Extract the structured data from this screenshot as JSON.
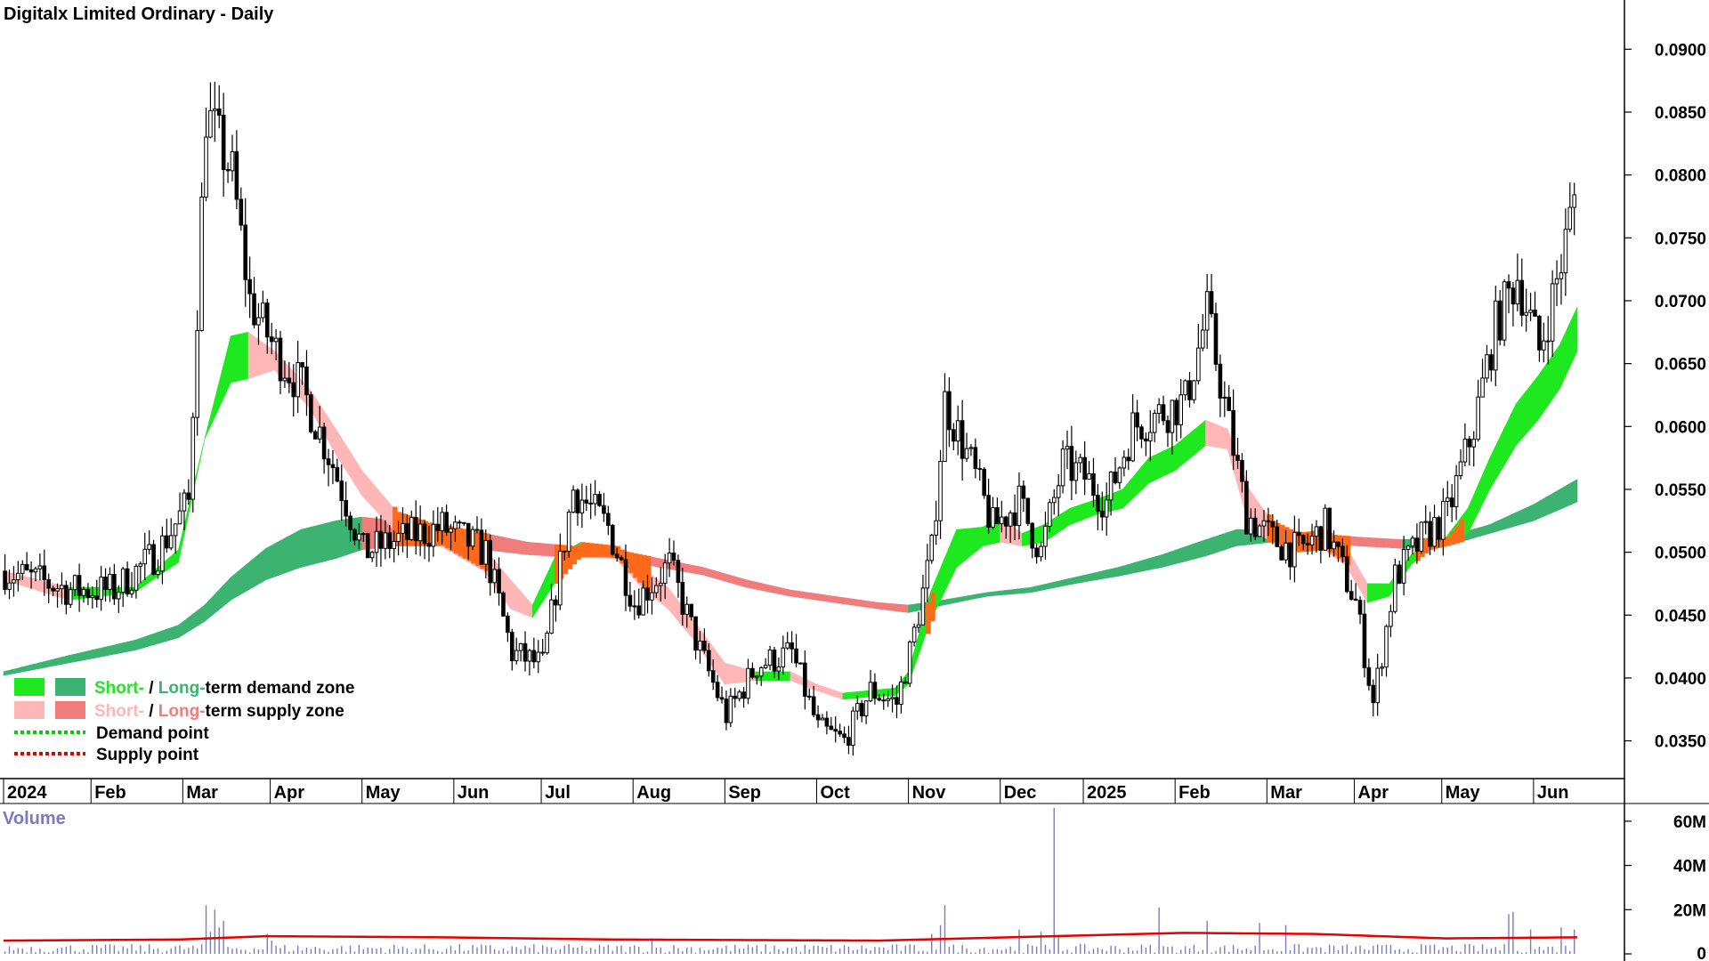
{
  "title": "Digitalx Limited Ordinary - Daily",
  "colors": {
    "short_demand": "#1ee81e",
    "long_demand": "#3cb371",
    "short_supply": "#ffb6b6",
    "long_supply": "#f07c7c",
    "overlap_orange": "#ff6a1a",
    "candle": "#000000",
    "volume_bar": "#7b7bbd",
    "volume_ma": "#e60000",
    "demand_point": "#00d000",
    "supply_point": "#e00000"
  },
  "legend": {
    "row1": {
      "short": "Short-",
      "sep": " / ",
      "long": "Long-",
      "rest": "term demand zone"
    },
    "row2": {
      "short": "Short-",
      "sep": " / ",
      "long": "Long-",
      "rest": "term supply zone"
    },
    "row3": "Demand point",
    "row4": "Supply point"
  },
  "chart_data": [
    {
      "type": "candlestick",
      "title": "Digitalx Limited Ordinary - Daily",
      "y_ticks": [
        "0.0900",
        "0.0850",
        "0.0800",
        "0.0750",
        "0.0700",
        "0.0650",
        "0.0600",
        "0.0550",
        "0.0500",
        "0.0450",
        "0.0400",
        "0.0350"
      ],
      "y_tick_values": [
        0.09,
        0.085,
        0.08,
        0.075,
        0.07,
        0.065,
        0.06,
        0.055,
        0.05,
        0.045,
        0.04,
        0.035
      ],
      "ylim": [
        0.032,
        0.0925
      ],
      "x_labels": [
        "2024",
        "Feb",
        "Mar",
        "Apr",
        "May",
        "Jun",
        "Jul",
        "Aug",
        "Sep",
        "Oct",
        "Nov",
        "Dec",
        "2025",
        "Feb",
        "Mar",
        "Apr",
        "May",
        "Jun"
      ],
      "x_label_index": [
        0,
        20,
        41,
        61,
        82,
        103,
        123,
        144,
        165,
        186,
        207,
        228,
        247,
        268,
        289,
        309,
        329,
        350
      ],
      "n_days": 360,
      "price_anchors": [
        [
          0,
          0.0485
        ],
        [
          15,
          0.047
        ],
        [
          25,
          0.047
        ],
        [
          35,
          0.05
        ],
        [
          42,
          0.054
        ],
        [
          46,
          0.085
        ],
        [
          52,
          0.08
        ],
        [
          56,
          0.07
        ],
        [
          62,
          0.066
        ],
        [
          68,
          0.063
        ],
        [
          75,
          0.057
        ],
        [
          82,
          0.05
        ],
        [
          90,
          0.051
        ],
        [
          100,
          0.052
        ],
        [
          110,
          0.05
        ],
        [
          116,
          0.042
        ],
        [
          123,
          0.041
        ],
        [
          130,
          0.055
        ],
        [
          138,
          0.052
        ],
        [
          144,
          0.046
        ],
        [
          152,
          0.049
        ],
        [
          158,
          0.043
        ],
        [
          165,
          0.037
        ],
        [
          172,
          0.041
        ],
        [
          180,
          0.042
        ],
        [
          186,
          0.036
        ],
        [
          192,
          0.035
        ],
        [
          198,
          0.039
        ],
        [
          204,
          0.038
        ],
        [
          207,
          0.042
        ],
        [
          212,
          0.05
        ],
        [
          215,
          0.062
        ],
        [
          221,
          0.057
        ],
        [
          226,
          0.052
        ],
        [
          232,
          0.054
        ],
        [
          237,
          0.05
        ],
        [
          242,
          0.057
        ],
        [
          247,
          0.056
        ],
        [
          252,
          0.054
        ],
        [
          258,
          0.06
        ],
        [
          264,
          0.061
        ],
        [
          270,
          0.062
        ],
        [
          275,
          0.069
        ],
        [
          280,
          0.06
        ],
        [
          284,
          0.053
        ],
        [
          290,
          0.051
        ],
        [
          296,
          0.05
        ],
        [
          302,
          0.052
        ],
        [
          309,
          0.046
        ],
        [
          313,
          0.038
        ],
        [
          318,
          0.048
        ],
        [
          324,
          0.051
        ],
        [
          330,
          0.053
        ],
        [
          336,
          0.06
        ],
        [
          341,
          0.068
        ],
        [
          346,
          0.072
        ],
        [
          351,
          0.066
        ],
        [
          356,
          0.073
        ],
        [
          360,
          0.08
        ]
      ],
      "short_band": [
        [
          0,
          0.0485,
          0.0478
        ],
        [
          15,
          0.0472,
          0.0462
        ],
        [
          30,
          0.0472,
          0.0468
        ],
        [
          40,
          0.0502,
          0.0492
        ],
        [
          46,
          0.059
        ],
        [
          52,
          0.0672,
          0.0635
        ],
        [
          56,
          0.0675,
          0.0638
        ],
        [
          62,
          0.066,
          0.0645
        ],
        [
          70,
          0.063,
          0.0615
        ],
        [
          76,
          0.0598,
          0.0578
        ],
        [
          82,
          0.0565,
          0.0545
        ],
        [
          90,
          0.0532,
          0.0515
        ],
        [
          100,
          0.052,
          0.0505
        ],
        [
          110,
          0.0503,
          0.0485
        ],
        [
          116,
          0.0478,
          0.0455
        ],
        [
          121,
          0.0458,
          0.0448
        ],
        [
          126,
          0.0495,
          0.0475
        ],
        [
          132,
          0.0508,
          0.0498
        ],
        [
          140,
          0.0505,
          0.0495
        ],
        [
          146,
          0.0488,
          0.0472
        ],
        [
          152,
          0.0472,
          0.0455
        ],
        [
          158,
          0.0445,
          0.043
        ],
        [
          165,
          0.0412,
          0.0395
        ],
        [
          172,
          0.0405,
          0.0398
        ],
        [
          180,
          0.0405,
          0.0398
        ],
        [
          186,
          0.0395,
          0.039
        ],
        [
          192,
          0.0388,
          0.0383
        ],
        [
          198,
          0.039,
          0.0385
        ],
        [
          204,
          0.0392,
          0.0386
        ],
        [
          207,
          0.0405,
          0.0395
        ],
        [
          212,
          0.0468,
          0.0445
        ],
        [
          218,
          0.0518,
          0.0488
        ],
        [
          224,
          0.052,
          0.0505
        ],
        [
          228,
          0.0528,
          0.0508
        ],
        [
          233,
          0.0515,
          0.0505
        ],
        [
          238,
          0.0522,
          0.0508
        ],
        [
          244,
          0.0535,
          0.0522
        ],
        [
          250,
          0.0542,
          0.053
        ],
        [
          256,
          0.055,
          0.0535
        ],
        [
          262,
          0.0575,
          0.0555
        ],
        [
          268,
          0.0585,
          0.0565
        ],
        [
          275,
          0.0605,
          0.0585
        ],
        [
          280,
          0.0598,
          0.0582
        ],
        [
          285,
          0.055,
          0.052
        ],
        [
          290,
          0.0525,
          0.0508
        ],
        [
          296,
          0.0515,
          0.05
        ],
        [
          302,
          0.0518,
          0.0502
        ],
        [
          307,
          0.0505,
          0.049
        ],
        [
          312,
          0.0475,
          0.046
        ],
        [
          317,
          0.0475,
          0.0465
        ],
        [
          322,
          0.0498,
          0.049
        ],
        [
          326,
          0.0508,
          0.0502
        ],
        [
          330,
          0.0512,
          0.0505
        ],
        [
          335,
          0.0535,
          0.0515
        ],
        [
          340,
          0.0575,
          0.055
        ],
        [
          346,
          0.0618,
          0.0585
        ],
        [
          351,
          0.064,
          0.0605
        ],
        [
          356,
          0.0665,
          0.063
        ],
        [
          360,
          0.0695,
          0.066
        ]
      ],
      "long_band": [
        [
          0,
          0.0405,
          0.0402
        ],
        [
          15,
          0.0418,
          0.0412
        ],
        [
          30,
          0.043,
          0.0422
        ],
        [
          40,
          0.0442,
          0.0432
        ],
        [
          46,
          0.0458,
          0.0445
        ],
        [
          52,
          0.048,
          0.0462
        ],
        [
          60,
          0.0503,
          0.0478
        ],
        [
          68,
          0.0518,
          0.0488
        ],
        [
          76,
          0.0525,
          0.0495
        ],
        [
          82,
          0.0528,
          0.0502
        ],
        [
          90,
          0.0525,
          0.0505
        ],
        [
          100,
          0.0522,
          0.0505
        ],
        [
          110,
          0.0515,
          0.0502
        ],
        [
          120,
          0.0508,
          0.0498
        ],
        [
          130,
          0.0505,
          0.0496
        ],
        [
          140,
          0.0502,
          0.0496
        ],
        [
          150,
          0.0495,
          0.0488
        ],
        [
          160,
          0.0488,
          0.0482
        ],
        [
          170,
          0.0478,
          0.0472
        ],
        [
          180,
          0.047,
          0.0465
        ],
        [
          190,
          0.0465,
          0.046
        ],
        [
          200,
          0.046,
          0.0455
        ],
        [
          207,
          0.0458,
          0.0452
        ],
        [
          215,
          0.0462,
          0.0458
        ],
        [
          225,
          0.0468,
          0.0465
        ],
        [
          235,
          0.0472,
          0.0468
        ],
        [
          245,
          0.048,
          0.0475
        ],
        [
          255,
          0.0488,
          0.0481
        ],
        [
          265,
          0.0498,
          0.0488
        ],
        [
          275,
          0.051,
          0.0497
        ],
        [
          282,
          0.0518,
          0.0505
        ],
        [
          290,
          0.0518,
          0.0508
        ],
        [
          300,
          0.0515,
          0.0508
        ],
        [
          310,
          0.0512,
          0.0505
        ],
        [
          320,
          0.051,
          0.0503
        ],
        [
          330,
          0.0512,
          0.0505
        ],
        [
          340,
          0.0522,
          0.0515
        ],
        [
          350,
          0.0538,
          0.0525
        ],
        [
          360,
          0.0558,
          0.054
        ]
      ]
    },
    {
      "type": "bar",
      "title": "Volume",
      "y_ticks": [
        "60M",
        "40M",
        "20M",
        "0"
      ],
      "y_tick_values": [
        60,
        40,
        20,
        0
      ],
      "ylim": [
        0,
        68
      ],
      "unit": "M",
      "spikes": [
        [
          12,
          2.5
        ],
        [
          46,
          22
        ],
        [
          47,
          10
        ],
        [
          48,
          20
        ],
        [
          49,
          12
        ],
        [
          50,
          15
        ],
        [
          60,
          9
        ],
        [
          61,
          6
        ],
        [
          148,
          7
        ],
        [
          212,
          9
        ],
        [
          214,
          13
        ],
        [
          215,
          22
        ],
        [
          232,
          11
        ],
        [
          237,
          10
        ],
        [
          240,
          66
        ],
        [
          241,
          8
        ],
        [
          264,
          21
        ],
        [
          275,
          15
        ],
        [
          287,
          14
        ],
        [
          293,
          13
        ],
        [
          344,
          18
        ],
        [
          345,
          19
        ],
        [
          349,
          11
        ],
        [
          356,
          12
        ],
        [
          359,
          11
        ]
      ],
      "ma_anchors": [
        [
          0,
          6
        ],
        [
          40,
          6.5
        ],
        [
          60,
          8
        ],
        [
          100,
          7.5
        ],
        [
          140,
          6.5
        ],
        [
          200,
          6
        ],
        [
          240,
          8
        ],
        [
          270,
          9.5
        ],
        [
          300,
          9
        ],
        [
          330,
          7
        ],
        [
          360,
          7.5
        ]
      ]
    }
  ]
}
